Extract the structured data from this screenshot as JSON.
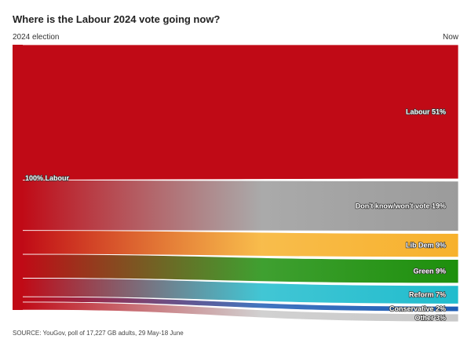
{
  "title": "Where is the Labour 2024 vote going now?",
  "left_label": "2024 election",
  "right_label": "Now",
  "source": "SOURCE: YouGov, poll of 17,227 GB adults, 29 May-18 June",
  "chart_data": {
    "type": "sankey",
    "source_node": {
      "label": "100% Labour",
      "value": 100,
      "color": "#c00a16"
    },
    "targets": [
      {
        "name": "Labour",
        "label": "Labour 51%",
        "value": 51,
        "color": "#c00a16"
      },
      {
        "name": "Don't know/won't vote",
        "label": "Don't know/won't vote 19%",
        "value": 19,
        "color": "#9b9b9b"
      },
      {
        "name": "Lib Dem",
        "label": "Lib Dem 9%",
        "value": 9,
        "color": "#f7b12c"
      },
      {
        "name": "Green",
        "label": "Green 9%",
        "value": 9,
        "color": "#1d8f0c"
      },
      {
        "name": "Reform",
        "label": "Reform 7%",
        "value": 7,
        "color": "#20bccd"
      },
      {
        "name": "Conservative",
        "label": "Conservative 2%",
        "value": 2,
        "color": "#1f5db5"
      },
      {
        "name": "Other",
        "label": "Other 3%",
        "value": 3,
        "color": "#c9c9c9"
      }
    ]
  }
}
